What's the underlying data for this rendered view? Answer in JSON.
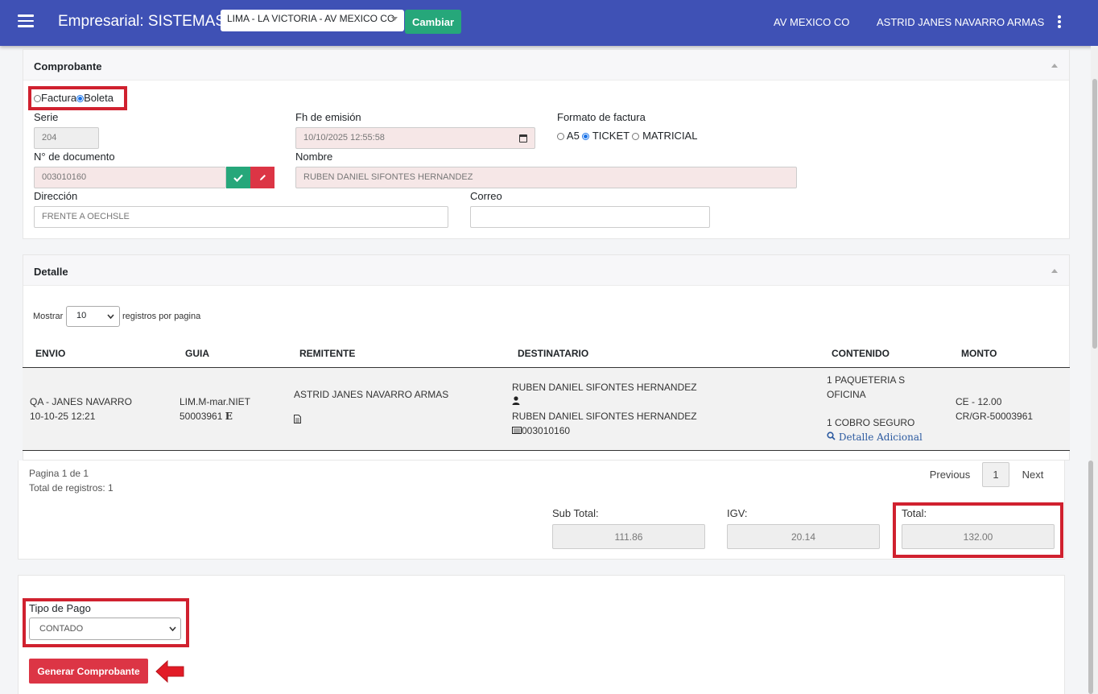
{
  "header": {
    "title": "Empresarial: SISTEMAS",
    "branch_select_value": "LIMA - LA VICTORIA - AV MEXICO CO",
    "change_button": "Cambiar",
    "branch_name": "AV MEXICO CO",
    "user_name": "ASTRID JANES NAVARRO ARMAS",
    "bar_color": "#3f51b5"
  },
  "comprobante": {
    "title": "Comprobante",
    "type_options": [
      "Factura",
      "Boleta"
    ],
    "type_selected": "Boleta",
    "serie_label": "Serie",
    "serie_value": "204",
    "fecha_label": "Fh de emisión",
    "fecha_value": "10/10/2025 12:55:58",
    "formato_label": "Formato de factura",
    "formato_options": [
      "A5",
      "TICKET",
      "MATRICIAL"
    ],
    "formato_selected": "TICKET",
    "documento_label": "N° de documento",
    "documento_value": "003010160",
    "nombre_label": "Nombre",
    "nombre_value": "RUBEN DANIEL SIFONTES HERNANDEZ",
    "direccion_label": "Dirección",
    "direccion_value": "FRENTE A OECHSLE",
    "correo_label": "Correo",
    "correo_value": ""
  },
  "detalle": {
    "title": "Detalle",
    "show_label": "Mostrar",
    "page_size": "10",
    "per_page_label": "registros por pagina",
    "columns": [
      "ENVIO",
      "GUIA",
      "REMITENTE",
      "DESTINATARIO",
      "CONTENIDO",
      "MONTO"
    ],
    "row": {
      "envio_line1": "QA - JANES NAVARRO",
      "envio_line2": "10-10-25 12:21",
      "guia_line1": "LIM.M-mar.NIET",
      "guia_line2": "50003961",
      "guia_badge": "E",
      "remitente": "ASTRID JANES NAVARRO ARMAS",
      "destinatario_line1": "RUBEN DANIEL SIFONTES HERNANDEZ",
      "destinatario_line2": "RUBEN DANIEL SIFONTES HERNANDEZ",
      "destinatario_doc": "003010160",
      "contenido_line1": "1 PAQUETERIA S",
      "contenido_line2": "OFICINA",
      "contenido_line3": "1 COBRO SEGURO",
      "contenido_link": "Detalle Adicional",
      "monto_line1": "CE - 12.00",
      "monto_line2": "CR/GR-50003961"
    },
    "page_info": "Pagina 1 de 1",
    "total_records": "Total de registros: 1",
    "prev": "Previous",
    "page": "1",
    "next": "Next",
    "subtotal_label": "Sub Total:",
    "subtotal_value": "111.86",
    "igv_label": "IGV:",
    "igv_value": "20.14",
    "total_label": "Total:",
    "total_value": "132.00"
  },
  "pago": {
    "label": "Tipo de Pago",
    "value": "CONTADO",
    "generate_button": "Generar Comprobante",
    "accent": "#dc3545"
  }
}
